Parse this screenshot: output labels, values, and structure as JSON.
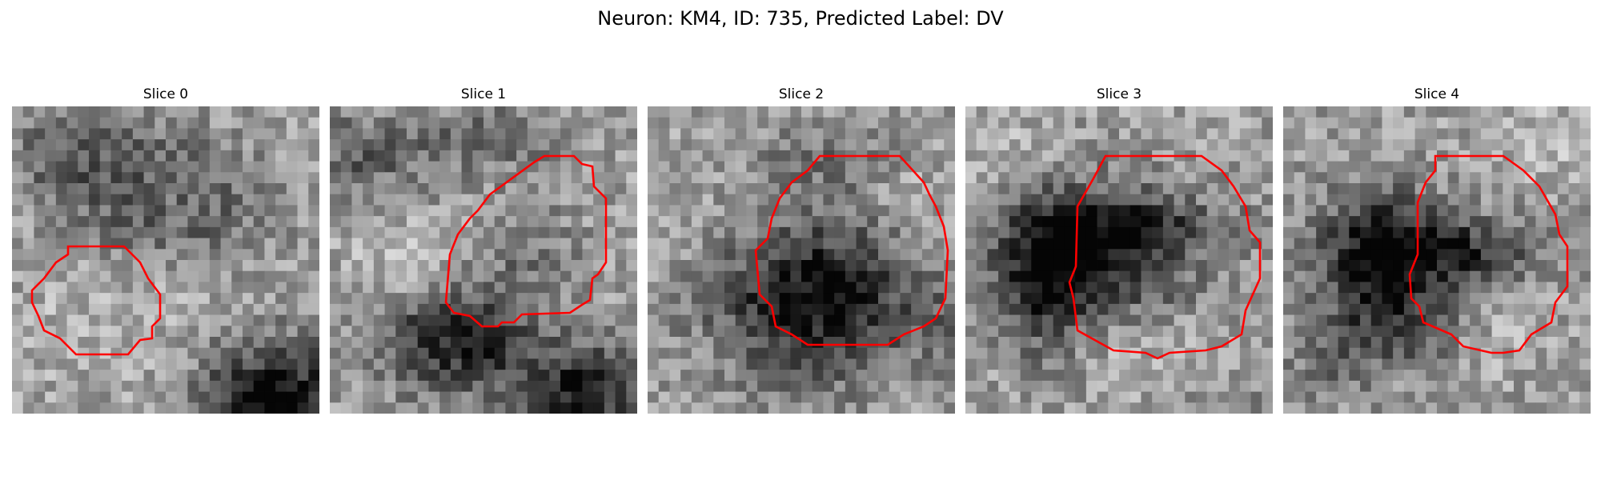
{
  "figure": {
    "title": "Neuron: KM4, ID: 735, Predicted Label: DV"
  },
  "colors": {
    "contour": "#ff0000",
    "background": "#ffffff"
  },
  "slices": [
    {
      "title": "Slice 0"
    },
    {
      "title": "Slice 1"
    },
    {
      "title": "Slice 2"
    },
    {
      "title": "Slice 3"
    },
    {
      "title": "Slice 4"
    }
  ]
}
